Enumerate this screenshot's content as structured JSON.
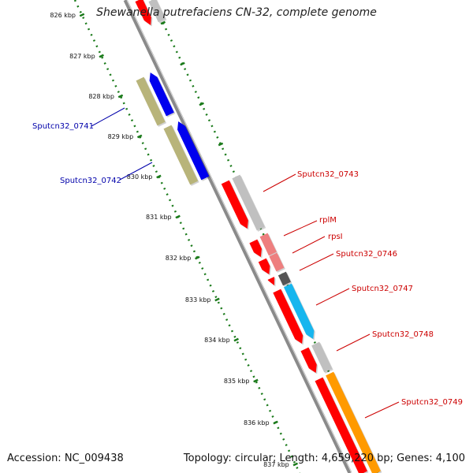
{
  "header": {
    "title": "Shewanella putrefaciens CN-32, complete genome"
  },
  "footer": {
    "accession": "Accession: NC_009438",
    "topology": "Topology: circular; Length: 4,659,220 bp; Genes: 4,100"
  },
  "ticks": [
    {
      "label": "826 kbp"
    },
    {
      "label": "827 kbp"
    },
    {
      "label": "828 kbp"
    },
    {
      "label": "829 kbp"
    },
    {
      "label": "830 kbp"
    },
    {
      "label": "831 kbp"
    },
    {
      "label": "832 kbp"
    },
    {
      "label": "833 kbp"
    },
    {
      "label": "834 kbp"
    },
    {
      "label": "835 kbp"
    },
    {
      "label": "836 kbp"
    },
    {
      "label": "837 kbp"
    }
  ],
  "gene_labels": {
    "Sputcn32_0741": "Sputcn32_0741",
    "Sputcn32_0742": "Sputcn32_0742",
    "Sputcn32_0743": "Sputcn32_0743",
    "rplM": "rplM",
    "rpsI": "rpsI",
    "Sputcn32_0746": "Sputcn32_0746",
    "Sputcn32_0747": "Sputcn32_0747",
    "Sputcn32_0748": "Sputcn32_0748",
    "Sputcn32_0749": "Sputcn32_0749"
  },
  "colors": {
    "backbone": "#8a8a8a",
    "tick_green": "#1a7a1a",
    "minus_label": "#0000aa",
    "plus_label": "#cc0000",
    "red": "#ff0000",
    "pink": "#ee7f7f",
    "gray": "#c0c0c0",
    "dark": "#555555",
    "cyan": "#17b6ee",
    "orange": "#ff9a00",
    "blue": "#0000ee",
    "olive": "#b8b47a"
  }
}
